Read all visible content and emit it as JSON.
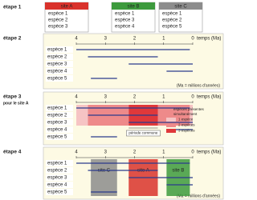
{
  "step1": {
    "label": "étape 1",
    "sites": [
      {
        "name": "site A",
        "color": "#d9322b",
        "species": [
          "espèce 1",
          "espèce 2",
          "espèce 3"
        ]
      },
      {
        "name": "site B",
        "color": "#3d9a3d",
        "species": [
          "espèce 1",
          "espèce 3",
          "espèce 4"
        ]
      },
      {
        "name": "site C",
        "color": "#8c8c8c",
        "species": [
          "espèce 1",
          "espèce 2",
          "espèce 5"
        ]
      }
    ]
  },
  "timeline": {
    "axis_label": "temps (Ma)",
    "note": "(Ma = millions d'années)",
    "xlim": [
      4,
      0
    ],
    "xticks": [
      4,
      3,
      2,
      1,
      0
    ],
    "line_color": "#2b3a8c",
    "species": [
      {
        "name": "espèce 1",
        "range": [
          4,
          0.1
        ]
      },
      {
        "name": "espèce 2",
        "range": [
          3.6,
          1.2
        ]
      },
      {
        "name": "espèce 3",
        "range": [
          2.2,
          0
        ]
      },
      {
        "name": "espèce 4",
        "range": [
          0.9,
          0
        ]
      },
      {
        "name": "espèce 5",
        "range": [
          3.5,
          2.6
        ]
      }
    ]
  },
  "step2": {
    "label": "étape 2"
  },
  "step3": {
    "label": "étape 3",
    "sublabel": "pour le site A",
    "legend_title": [
      "espèces présentes",
      "simultanément"
    ],
    "legend": [
      {
        "label": "1 espèce",
        "color": "#f6c4c4"
      },
      {
        "label": "2 espèces",
        "color": "#ee8a8a"
      },
      {
        "label": "3 espèces",
        "color": "#e0383a"
      }
    ],
    "common_label": "période commune"
  },
  "step4": {
    "label": "étape 4"
  }
}
